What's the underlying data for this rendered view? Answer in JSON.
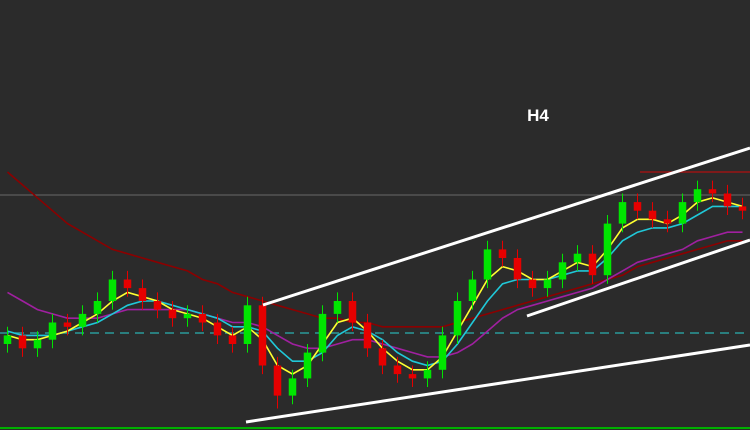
{
  "chart_data": {
    "type": "candlestick",
    "title": "H4",
    "up_color": "#00e600",
    "down_color": "#e60000",
    "ylim": [
      0,
      100
    ],
    "open": [
      20,
      22,
      19,
      21,
      25,
      24,
      27,
      30,
      35,
      33,
      30,
      28,
      26,
      27,
      25,
      22,
      20,
      29,
      15,
      8,
      12,
      18,
      27,
      30,
      25,
      19,
      15,
      13,
      12,
      14,
      22,
      30,
      35,
      42,
      40,
      35,
      33,
      35,
      39,
      41,
      36,
      48,
      53,
      51,
      49,
      48,
      53,
      56,
      55,
      52
    ],
    "high": [
      24,
      24,
      23,
      27,
      27,
      29,
      32,
      37,
      37,
      35,
      32,
      30,
      29,
      29,
      27,
      24,
      31,
      31,
      17,
      14,
      20,
      29,
      32,
      32,
      27,
      21,
      17,
      15,
      16,
      24,
      32,
      37,
      44,
      44,
      42,
      37,
      37,
      41,
      43,
      43,
      50,
      55,
      55,
      53,
      51,
      55,
      58,
      58,
      57,
      54
    ],
    "low": [
      18,
      17,
      17,
      19,
      22,
      22,
      25,
      28,
      31,
      28,
      26,
      24,
      24,
      23,
      20,
      18,
      18,
      13,
      5,
      6,
      10,
      16,
      25,
      23,
      17,
      13,
      11,
      10,
      10,
      12,
      20,
      28,
      33,
      38,
      33,
      31,
      31,
      33,
      37,
      34,
      34,
      46,
      49,
      47,
      46,
      46,
      51,
      53,
      50,
      49
    ],
    "close": [
      22,
      19,
      21,
      25,
      24,
      27,
      30,
      35,
      33,
      30,
      28,
      26,
      27,
      25,
      22,
      20,
      29,
      15,
      8,
      12,
      18,
      27,
      30,
      25,
      19,
      15,
      13,
      12,
      14,
      22,
      30,
      35,
      42,
      40,
      35,
      33,
      35,
      39,
      41,
      36,
      48,
      53,
      51,
      49,
      48,
      53,
      56,
      55,
      52,
      51
    ],
    "series": [
      {
        "color": "#8b0000",
        "values": [
          60,
          57,
          54,
          51,
          48,
          46,
          44,
          42,
          41,
          40,
          39,
          38,
          37,
          35,
          34,
          32,
          31,
          30,
          29,
          28,
          27,
          26,
          26,
          25,
          25,
          24,
          24,
          24,
          24,
          24,
          25,
          26,
          27,
          28,
          29,
          30,
          31,
          32,
          33,
          34,
          35,
          36,
          38,
          39,
          40,
          41,
          42,
          43,
          44,
          44
        ]
      },
      {
        "color": "#a020a0",
        "values": [
          32,
          30,
          28,
          27,
          26,
          26,
          26,
          27,
          28,
          28,
          28,
          28,
          28,
          27,
          26,
          25,
          25,
          24,
          22,
          20,
          19,
          19,
          20,
          21,
          21,
          20,
          19,
          18,
          17,
          17,
          18,
          20,
          23,
          26,
          28,
          29,
          30,
          31,
          32,
          33,
          35,
          37,
          39,
          40,
          41,
          42,
          44,
          45,
          46,
          46
        ]
      },
      {
        "color": "#20c8d8",
        "values": [
          23,
          22,
          22,
          22,
          23,
          24,
          25,
          27,
          29,
          30,
          30,
          29,
          28,
          27,
          26,
          24,
          24,
          23,
          19,
          16,
          16,
          18,
          22,
          24,
          23,
          21,
          18,
          16,
          15,
          16,
          20,
          25,
          30,
          34,
          35,
          35,
          35,
          36,
          37,
          37,
          40,
          44,
          46,
          47,
          47,
          48,
          50,
          52,
          52,
          52
        ]
      },
      {
        "color": "#ffff30",
        "values": [
          22,
          21,
          21,
          22,
          23,
          25,
          27,
          30,
          32,
          31,
          30,
          28,
          27,
          26,
          24,
          22,
          24,
          21,
          15,
          13,
          15,
          20,
          25,
          26,
          23,
          19,
          16,
          14,
          14,
          17,
          23,
          29,
          35,
          38,
          37,
          35,
          35,
          37,
          39,
          38,
          42,
          47,
          49,
          49,
          48,
          50,
          53,
          54,
          53,
          52
        ]
      }
    ]
  }
}
